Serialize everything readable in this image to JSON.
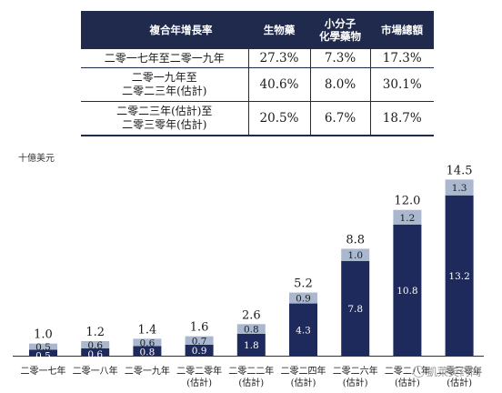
{
  "table": {
    "headers": {
      "period": "複合年增長率",
      "biologics": "生物藥",
      "small_molecule_line1": "小分子",
      "small_molecule_line2": "化學藥物",
      "total": "市場總額"
    },
    "rows": [
      {
        "period_line1": "二零一七年至二零一九年",
        "period_line2": "",
        "biologics": "27.3%",
        "small_molecule": "7.3%",
        "total": "17.3%"
      },
      {
        "period_line1": "二零一九年至",
        "period_line2": "二零二三年(估計)",
        "biologics": "40.6%",
        "small_molecule": "8.0%",
        "total": "30.1%"
      },
      {
        "period_line1": "二零二三年(估計)至",
        "period_line2": "二零三零年(估計)",
        "biologics": "20.5%",
        "small_molecule": "6.7%",
        "total": "18.7%"
      }
    ]
  },
  "unit_label": "十億美元",
  "colors": {
    "small_molecule": "#1f2a5c",
    "biologics": "#a9b8cf",
    "header_bg": "#1f2a4d"
  },
  "chart_data": {
    "type": "bar",
    "stacked": true,
    "ylabel": "十億美元",
    "ylim": [
      0,
      15.5
    ],
    "categories": [
      [
        "二零一七年",
        ""
      ],
      [
        "二零一八年",
        ""
      ],
      [
        "二零一九年",
        ""
      ],
      [
        "二零二零年",
        "(估計)"
      ],
      [
        "二零二二年",
        "(估計)"
      ],
      [
        "二零二四年",
        "(估計)"
      ],
      [
        "二零二六年",
        "(估計)"
      ],
      [
        "二零二八年",
        "(估計)"
      ],
      [
        "二零三零年",
        "(估計)"
      ]
    ],
    "series": [
      {
        "key": "small_molecule",
        "values": [
          0.5,
          0.6,
          0.8,
          0.9,
          1.8,
          4.3,
          7.8,
          10.8,
          13.2
        ]
      },
      {
        "key": "biologics",
        "values": [
          0.5,
          0.6,
          0.6,
          0.7,
          0.8,
          0.9,
          1.0,
          1.2,
          1.3
        ]
      }
    ],
    "totals": [
      1.0,
      1.2,
      1.4,
      1.6,
      2.6,
      5.2,
      8.8,
      12.0,
      14.5
    ],
    "segment_labels": [
      [
        "0.5",
        "0.6",
        "0.8",
        "0.9",
        "1.8",
        "4.3",
        "7.8",
        "10.8",
        "13.2"
      ],
      [
        "0.5",
        "0.6",
        "0.6",
        "0.7",
        "0.8",
        "0.9",
        "1.0",
        "1.2",
        "1.3"
      ]
    ],
    "total_labels": [
      "1.0",
      "1.2",
      "1.4",
      "1.6",
      "2.6",
      "5.2",
      "8.8",
      "12.0",
      "14.5"
    ],
    "grid": false,
    "legend": "none"
  },
  "watermark": "凱萊英药闻"
}
